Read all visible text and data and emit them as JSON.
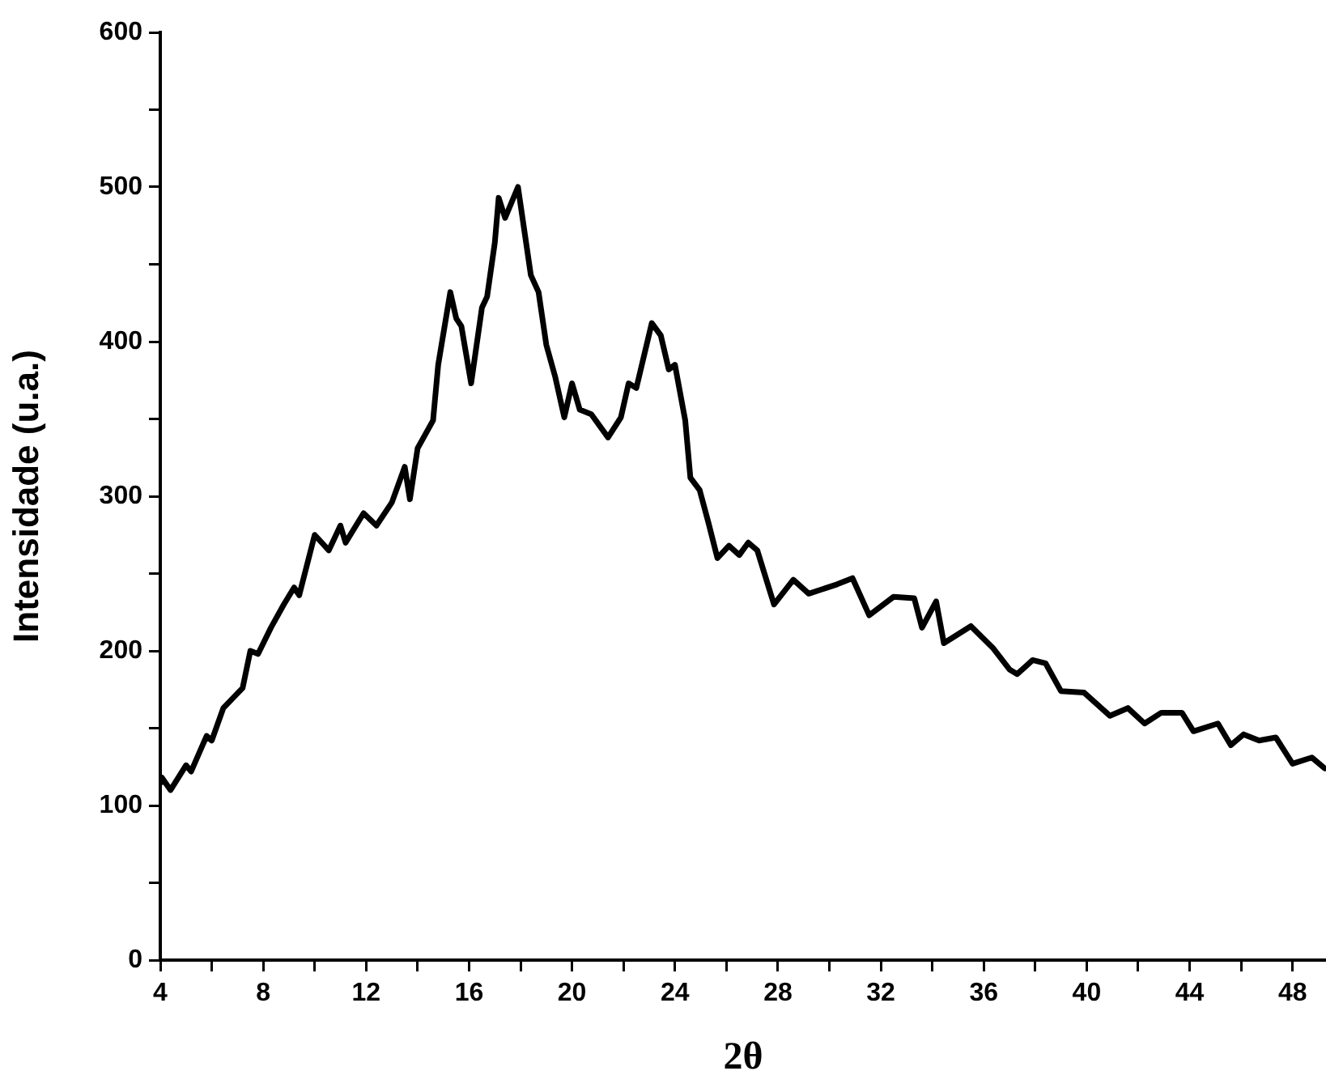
{
  "chart_data": {
    "type": "line",
    "xlabel": "2θ",
    "ylabel": "Intensidade (u.a.)",
    "xlim": [
      4,
      49.3
    ],
    "ylim": [
      0,
      600
    ],
    "xticks": [
      4,
      {
        "value": 6,
        "label": null
      },
      8,
      {
        "value": 10,
        "label": null
      },
      12,
      {
        "value": 14,
        "label": null
      },
      16,
      {
        "value": 18,
        "label": null
      },
      20,
      {
        "value": 22,
        "label": null
      },
      24,
      {
        "value": 26,
        "label": null
      },
      28,
      {
        "value": 30,
        "label": null
      },
      32,
      {
        "value": 34,
        "label": null
      },
      36,
      {
        "value": 38,
        "label": null
      },
      40,
      {
        "value": 42,
        "label": null
      },
      44,
      {
        "value": 46,
        "label": null
      },
      48
    ],
    "yticks": [
      0,
      {
        "value": 50,
        "label": null
      },
      100,
      {
        "value": 150,
        "label": null
      },
      200,
      {
        "value": 250,
        "label": null
      },
      300,
      {
        "value": 350,
        "label": null
      },
      400,
      {
        "value": 450,
        "label": null
      },
      500,
      {
        "value": 550,
        "label": null
      },
      600
    ],
    "grid": false,
    "legend": false,
    "marker": "none",
    "line_style": "solid",
    "series": [
      {
        "color": "#000000",
        "x": [
          4.0,
          4.06,
          4.4,
          5.0,
          5.2,
          5.8,
          6.0,
          6.45,
          7.2,
          7.5,
          7.8,
          8.3,
          8.8,
          9.2,
          9.4,
          10.0,
          10.55,
          11.0,
          11.2,
          11.9,
          12.4,
          13.0,
          13.5,
          13.7,
          14.0,
          14.6,
          14.8,
          15.27,
          15.5,
          15.7,
          16.08,
          16.5,
          16.7,
          17.0,
          17.15,
          17.4,
          17.9,
          18.4,
          18.7,
          19.0,
          19.35,
          19.7,
          20.0,
          20.3,
          20.75,
          21.4,
          21.9,
          22.2,
          22.5,
          23.1,
          23.45,
          23.76,
          24.0,
          24.4,
          24.6,
          24.96,
          25.3,
          25.65,
          26.1,
          26.5,
          26.85,
          27.2,
          27.85,
          28.6,
          29.2,
          30.3,
          30.9,
          31.55,
          32.5,
          33.3,
          33.6,
          34.15,
          34.45,
          35.5,
          36.35,
          37.0,
          37.3,
          37.9,
          38.4,
          39.0,
          39.9,
          40.9,
          41.6,
          42.25,
          42.9,
          43.7,
          44.15,
          45.1,
          45.6,
          46.1,
          46.7,
          47.35,
          48.0,
          48.75,
          49.25
        ],
        "values": [
          115,
          118,
          110,
          126,
          122,
          145,
          142,
          163,
          176,
          200,
          198,
          215,
          230,
          241,
          236,
          275,
          265,
          281,
          270,
          289,
          281,
          296,
          319,
          298,
          331,
          349,
          385,
          432,
          415,
          410,
          373,
          422,
          429,
          464,
          493,
          480,
          500,
          443,
          432,
          398,
          377,
          351,
          373,
          356,
          353,
          338,
          351,
          373,
          370,
          412,
          404,
          382,
          385,
          349,
          312,
          304,
          283,
          260,
          268,
          262,
          270,
          265,
          230,
          246,
          237,
          243,
          247,
          223,
          235,
          234,
          215,
          232,
          205,
          216,
          202,
          188,
          185,
          194,
          192,
          174,
          173,
          158,
          163,
          153,
          160,
          160,
          148,
          153,
          139,
          146,
          142,
          144,
          127,
          131,
          124
        ]
      }
    ]
  }
}
